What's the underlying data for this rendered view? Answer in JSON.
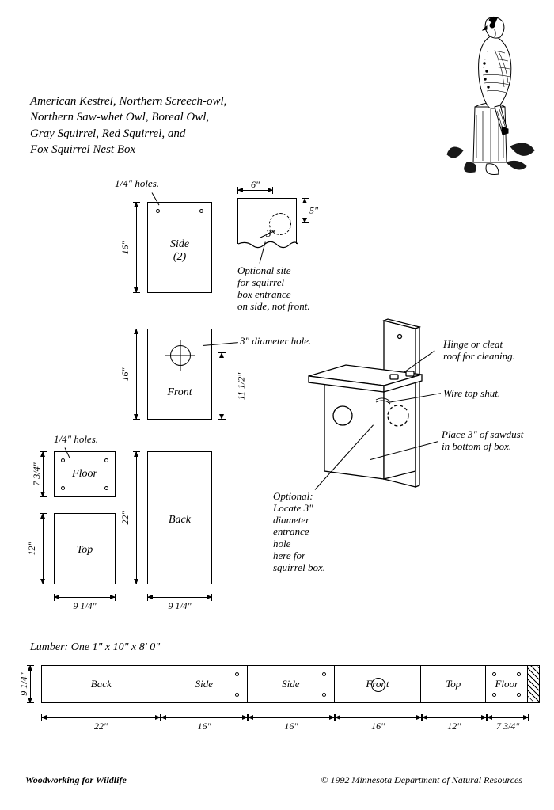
{
  "title_lines": [
    "American Kestrel, Northern Screech-owl,",
    "Northern Saw-whet Owl, Boreal Owl,",
    "Gray Squirrel, Red Squirrel, and",
    "Fox Squirrel Nest Box"
  ],
  "labels": {
    "quarter_holes_top": "1/4\" holes.",
    "quarter_holes_floor": "1/4\" holes.",
    "side_piece": "Side\n(2)",
    "front_piece": "Front",
    "floor_piece": "Floor",
    "top_piece": "Top",
    "back_piece": "Back",
    "optional_side": "Optional site\nfor squirrel\nbox entrance\non side, not front.",
    "diameter_hole": "3\" diameter hole.",
    "hinge": "Hinge or cleat\nroof for cleaning.",
    "wire": "Wire top shut.",
    "sawdust": "Place 3\" of sawdust\nin bottom of box.",
    "optional_locate": "Optional:\nLocate 3\"\ndiameter\nentrance\nhole\nhere for\nsquirrel box."
  },
  "dims": {
    "side_h": "16\"",
    "front_h": "16\"",
    "front_h2": "11 1/2\"",
    "floor_h": "7 3/4\"",
    "top_h": "12\"",
    "back_h": "22\"",
    "width1": "9 1/4\"",
    "width2": "9 1/4\"",
    "detail_6": "6\"",
    "detail_5": "5\"",
    "detail_3": "3\"",
    "lumber_side_h": "9 1/4\""
  },
  "lumber": {
    "note": "Lumber: One 1\" x 10\" x 8' 0\"",
    "cells": [
      {
        "label": "Back",
        "w": "22\"",
        "flex": 22
      },
      {
        "label": "Side",
        "w": "16\"",
        "flex": 16,
        "holes": true
      },
      {
        "label": "Side",
        "w": "16\"",
        "flex": 16,
        "holes": true
      },
      {
        "label": "Front",
        "w": "16\"",
        "flex": 16,
        "bighole": true
      },
      {
        "label": "Top",
        "w": "12\"",
        "flex": 12
      },
      {
        "label": "Floor",
        "w": "7 3/4\"",
        "flex": 7.75,
        "holes4": true
      }
    ],
    "waste_flex": 2
  },
  "footer": {
    "left": "Woodworking for Wildlife",
    "right": "© 1992 Minnesota Department of Natural Resources"
  },
  "colors": {
    "stroke": "#000000",
    "bg": "#ffffff"
  }
}
